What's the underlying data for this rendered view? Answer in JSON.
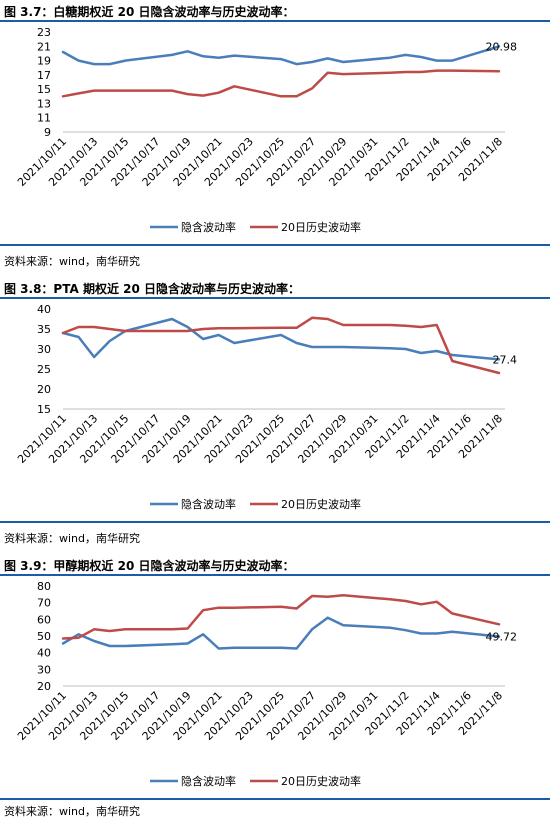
{
  "colors": {
    "implied": "#4a7ebb",
    "historical": "#be4b48",
    "rule": "#1f5aa8",
    "axis": "#bfbfbf"
  },
  "figures": [
    {
      "title": "图 3.7：白糖期权近 20 日隐含波动率与历史波动率：",
      "source": "资料来源：wind，南华研究"
    },
    {
      "title": "图 3.8：PTA 期权近 20 日隐含波动率与历史波动率：",
      "source": "资料来源：wind，南华研究"
    },
    {
      "title": "图 3.9：甲醇期权近 20 日隐含波动率与历史波动率：",
      "source": "资料来源：wind，南华研究"
    }
  ],
  "chart_data": [
    {
      "type": "line",
      "title": "",
      "x": [
        "2021/10/11",
        "2021/10/12",
        "2021/10/13",
        "2021/10/14",
        "2021/10/15",
        "2021/10/18",
        "2021/10/19",
        "2021/10/20",
        "2021/10/21",
        "2021/10/22",
        "2021/10/25",
        "2021/10/26",
        "2021/10/27",
        "2021/10/28",
        "2021/10/29",
        "2021/11/1",
        "2021/11/2",
        "2021/11/3",
        "2021/11/4",
        "2021/11/5",
        "2021/11/8"
      ],
      "xticks": [
        "2021/10/11",
        "2021/10/13",
        "2021/10/15",
        "2021/10/17",
        "2021/10/19",
        "2021/10/21",
        "2021/10/23",
        "2021/10/25",
        "2021/10/27",
        "2021/10/29",
        "2021/10/31",
        "2021/11/2",
        "2021/11/4",
        "2021/11/6",
        "2021/11/8"
      ],
      "ylim": [
        9,
        23
      ],
      "yticks": [
        9,
        11,
        13,
        15,
        17,
        19,
        21,
        23
      ],
      "series": [
        {
          "name": "隐含波动率",
          "values": [
            20.2,
            19.0,
            18.5,
            18.5,
            19.0,
            19.8,
            20.3,
            19.6,
            19.4,
            19.7,
            19.2,
            18.5,
            18.8,
            19.3,
            18.8,
            19.4,
            19.8,
            19.5,
            19.0,
            19.0,
            20.98
          ]
        },
        {
          "name": "20日历史波动率",
          "values": [
            14.0,
            14.4,
            14.8,
            14.8,
            14.8,
            14.8,
            14.3,
            14.1,
            14.5,
            15.4,
            14.0,
            14.0,
            15.1,
            17.3,
            17.1,
            17.3,
            17.4,
            17.4,
            17.6,
            17.6,
            17.5
          ]
        }
      ],
      "annotation": "20.98"
    },
    {
      "type": "line",
      "title": "",
      "x": [
        "2021/10/11",
        "2021/10/12",
        "2021/10/13",
        "2021/10/14",
        "2021/10/15",
        "2021/10/18",
        "2021/10/19",
        "2021/10/20",
        "2021/10/21",
        "2021/10/22",
        "2021/10/25",
        "2021/10/26",
        "2021/10/27",
        "2021/10/28",
        "2021/10/29",
        "2021/11/1",
        "2021/11/2",
        "2021/11/3",
        "2021/11/4",
        "2021/11/5",
        "2021/11/8"
      ],
      "xticks": [
        "2021/10/11",
        "2021/10/13",
        "2021/10/15",
        "2021/10/17",
        "2021/10/19",
        "2021/10/21",
        "2021/10/23",
        "2021/10/25",
        "2021/10/27",
        "2021/10/29",
        "2021/10/31",
        "2021/11/2",
        "2021/11/4",
        "2021/11/6",
        "2021/11/8"
      ],
      "ylim": [
        15,
        40
      ],
      "yticks": [
        15,
        20,
        25,
        30,
        35,
        40
      ],
      "series": [
        {
          "name": "隐含波动率",
          "values": [
            34.0,
            33.0,
            28.0,
            32.0,
            34.5,
            37.5,
            35.5,
            32.5,
            33.5,
            31.5,
            33.5,
            31.5,
            30.5,
            30.5,
            30.5,
            30.2,
            30.0,
            29.0,
            29.5,
            28.5,
            27.4
          ]
        },
        {
          "name": "20日历史波动率",
          "values": [
            34.0,
            35.5,
            35.5,
            35.0,
            34.5,
            34.5,
            34.5,
            35.0,
            35.2,
            35.2,
            35.3,
            35.3,
            37.8,
            37.5,
            36.0,
            36.0,
            35.8,
            35.5,
            36.0,
            27.0,
            24.0
          ]
        }
      ],
      "annotation": "27.4"
    },
    {
      "type": "line",
      "title": "",
      "x": [
        "2021/10/11",
        "2021/10/12",
        "2021/10/13",
        "2021/10/14",
        "2021/10/15",
        "2021/10/18",
        "2021/10/19",
        "2021/10/20",
        "2021/10/21",
        "2021/10/22",
        "2021/10/25",
        "2021/10/26",
        "2021/10/27",
        "2021/10/28",
        "2021/10/29",
        "2021/11/1",
        "2021/11/2",
        "2021/11/3",
        "2021/11/4",
        "2021/11/5",
        "2021/11/8"
      ],
      "xticks": [
        "2021/10/11",
        "2021/10/13",
        "2021/10/15",
        "2021/10/17",
        "2021/10/19",
        "2021/10/21",
        "2021/10/23",
        "2021/10/25",
        "2021/10/27",
        "2021/10/29",
        "2021/10/31",
        "2021/11/2",
        "2021/11/4",
        "2021/11/6",
        "2021/11/8"
      ],
      "ylim": [
        20,
        80
      ],
      "yticks": [
        20,
        30,
        40,
        50,
        60,
        70,
        80
      ],
      "series": [
        {
          "name": "隐含波动率",
          "values": [
            45.5,
            51.0,
            47.0,
            44.0,
            44.0,
            45.0,
            45.5,
            51.0,
            42.5,
            43.0,
            43.0,
            42.5,
            54.0,
            61.0,
            56.5,
            55.0,
            53.5,
            51.5,
            51.5,
            52.5,
            49.72
          ]
        },
        {
          "name": "20日历史波动率",
          "values": [
            48.5,
            49.0,
            54.0,
            53.0,
            54.0,
            54.0,
            54.5,
            65.5,
            67.0,
            67.0,
            67.5,
            66.5,
            74.0,
            73.5,
            74.5,
            72.0,
            71.0,
            69.0,
            70.5,
            63.5,
            57.0
          ]
        }
      ],
      "annotation": "49.72"
    }
  ]
}
